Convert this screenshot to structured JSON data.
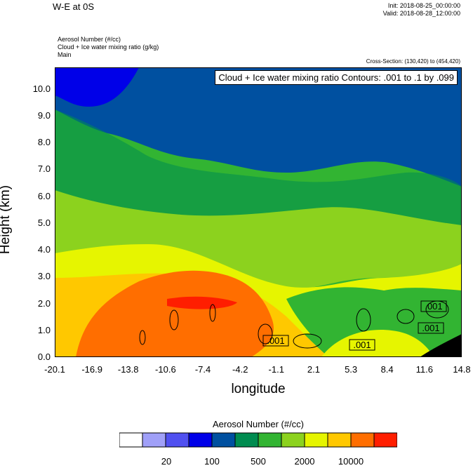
{
  "header": {
    "title": "W-E at 0S",
    "init": "Init: 2018-08-25_00:00:00",
    "valid": "Valid: 2018-08-28_12:00:00",
    "line1": "Aerosol Number   (#/cc)",
    "line2": "Cloud + Ice water mixing ratio   (g/kg)",
    "line3": "Main",
    "cross_section": "Cross-Section: (130,420) to (454,420)"
  },
  "chart_data": {
    "type": "heatmap",
    "title": "W-E at 0S",
    "xlabel": "longitude",
    "ylabel": "Height (km)",
    "xlim": [
      -20.1,
      14.8
    ],
    "ylim": [
      0.0,
      10.8
    ],
    "x_ticks": [
      "-20.1",
      "-16.9",
      "-13.8",
      "-10.6",
      "-7.4",
      "-4.2",
      "-1.1",
      "2.1",
      "5.3",
      "8.4",
      "11.6",
      "14.8"
    ],
    "y_ticks": [
      "0.0",
      "1.0",
      "2.0",
      "3.0",
      "4.0",
      "5.0",
      "6.0",
      "7.0",
      "8.0",
      "9.0",
      "10.0"
    ],
    "contour_label": "Cloud + Ice water mixing ratio Contours: .001 to .1 by .099",
    "contour_value_labels": [
      ".001",
      ".001",
      ".001",
      ".001"
    ],
    "colorbar": {
      "title": "Aerosol Number  (#/cc)",
      "colors": [
        "#ffffff",
        "#a0a0f8",
        "#5050f0",
        "#0000e8",
        "#0050a0",
        "#008c50",
        "#32b432",
        "#8cd21e",
        "#e6f500",
        "#ffc800",
        "#ff6e00",
        "#ff1e00"
      ],
      "labels": [
        "20",
        "100",
        "500",
        "2000",
        "10000"
      ]
    }
  }
}
